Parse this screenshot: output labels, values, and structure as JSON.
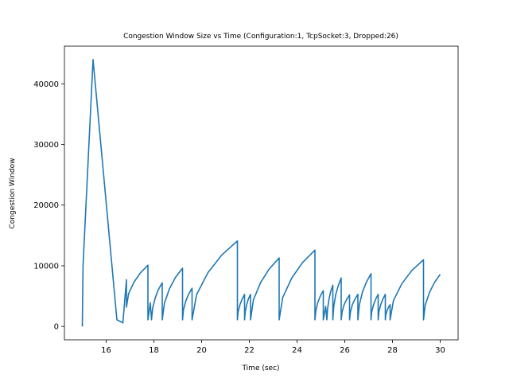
{
  "chart_data": {
    "type": "line",
    "title": "Congestion Window Size vs Time (Configuration:1, TcpSocket:3, Dropped:26)",
    "xlabel": "Time (sec)",
    "ylabel": "Congestion Window",
    "color": "#1f77b4",
    "xlim": [
      14.25,
      30.75
    ],
    "ylim": [
      -2200,
      46200
    ],
    "xticks": [
      16,
      18,
      20,
      22,
      24,
      26,
      28,
      30
    ],
    "yticks": [
      0,
      10000,
      20000,
      30000,
      40000
    ],
    "x": [
      15.0,
      15.03,
      15.45,
      16.45,
      16.7,
      16.85,
      16.85,
      16.94,
      17.17,
      17.44,
      17.75,
      17.75,
      17.85,
      17.9,
      17.95,
      18.06,
      18.19,
      18.35,
      18.35,
      18.44,
      18.65,
      18.9,
      19.2,
      19.2,
      19.24,
      19.34,
      19.46,
      19.6,
      19.6,
      19.79,
      20.27,
      20.84,
      21.5,
      21.5,
      21.53,
      21.61,
      21.7,
      21.8,
      21.8,
      21.83,
      21.89,
      21.96,
      22.05,
      22.05,
      22.17,
      22.47,
      22.83,
      23.25,
      23.25,
      23.4,
      23.78,
      24.23,
      24.75,
      24.75,
      24.79,
      24.87,
      24.98,
      25.1,
      25.1,
      25.2,
      25.25,
      25.28,
      25.34,
      25.41,
      25.5,
      25.5,
      25.54,
      25.62,
      25.73,
      25.85,
      25.85,
      25.89,
      25.97,
      26.08,
      26.2,
      26.2,
      26.24,
      26.32,
      26.43,
      26.55,
      26.55,
      26.61,
      26.74,
      26.91,
      27.1,
      27.1,
      27.13,
      27.21,
      27.3,
      27.4,
      27.4,
      27.43,
      27.51,
      27.6,
      27.7,
      27.7,
      27.72,
      27.77,
      27.83,
      27.9,
      27.9,
      28.04,
      28.39,
      28.81,
      29.3,
      29.3,
      29.37,
      29.55,
      29.76,
      30.0
    ],
    "values": [
      0,
      10000,
      44000,
      1100,
      600,
      7700,
      3200,
      5400,
      7340,
      8860,
      10100,
      1100,
      3900,
      1100,
      3050,
      4760,
      6100,
      7200,
      1100,
      3820,
      6200,
      8070,
      9600,
      1100,
      2760,
      4220,
      5360,
      6300,
      1100,
      5260,
      8900,
      11760,
      14100,
      1100,
      2440,
      3620,
      4540,
      5300,
      1100,
      2440,
      3620,
      4540,
      5300,
      1100,
      4360,
      7220,
      9460,
      11300,
      1100,
      4780,
      8000,
      10530,
      12600,
      1100,
      2640,
      3980,
      5040,
      5900,
      1100,
      3300,
      1100,
      2920,
      4520,
      5770,
      6800,
      1100,
      3310,
      5240,
      6760,
      8000,
      1100,
      2410,
      3560,
      4460,
      5200,
      1100,
      2440,
      3620,
      4540,
      5300,
      1100,
      3530,
      5660,
      7330,
      8700,
      1100,
      2440,
      3620,
      4540,
      5300,
      1100,
      2440,
      3620,
      4540,
      5300,
      1100,
      1900,
      2600,
      3150,
      3600,
      1100,
      4270,
      7040,
      9220,
      11000,
      1100,
      3500,
      5600,
      7250,
      8600
    ]
  }
}
